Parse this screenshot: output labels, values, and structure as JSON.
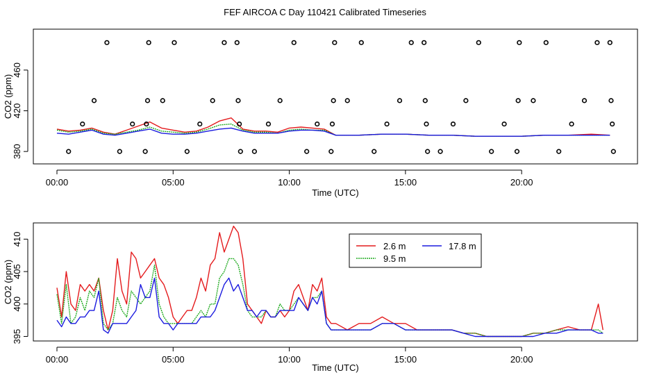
{
  "title": "FEF AIRCOA C  Day 110421  Calibrated Timeseries",
  "chart_data": [
    {
      "type": "line",
      "panel": "top",
      "xlabel": "Time (UTC)",
      "ylabel": "CO2 (ppm)",
      "xlim": [
        0,
        24
      ],
      "ylim": [
        376,
        492
      ],
      "xticks": [
        0,
        5,
        10,
        15,
        20
      ],
      "xtick_labels": [
        "00:00",
        "05:00",
        "10:00",
        "15:00",
        "20:00"
      ],
      "yticks": [
        380,
        420,
        460
      ],
      "ytick_labels": [
        "380",
        "420",
        "460"
      ],
      "series": [
        {
          "name": "2.6 m",
          "color": "#e41a1c",
          "x": [
            0,
            0.5,
            1,
            1.5,
            2,
            2.5,
            3,
            3.5,
            4,
            4.5,
            5,
            5.5,
            6,
            6.5,
            7,
            7.5,
            8,
            8.5,
            9,
            9.5,
            10,
            10.5,
            11,
            11.5,
            12,
            13,
            14,
            15,
            16,
            17,
            18,
            19,
            20,
            21,
            22,
            23,
            23.8
          ],
          "y": [
            402,
            400,
            401,
            403,
            399,
            397,
            401,
            405,
            409,
            403,
            401,
            399,
            400,
            404,
            410,
            413,
            402,
            400,
            400,
            399,
            403,
            404,
            403,
            402,
            396,
            396,
            397,
            397,
            396,
            396,
            395,
            395,
            395,
            396,
            396,
            397,
            396
          ]
        },
        {
          "name": "9.5 m",
          "color": "#1faa1f",
          "x": [
            0,
            0.5,
            1,
            1.5,
            2,
            2.5,
            3,
            3.5,
            4,
            4.5,
            5,
            5.5,
            6,
            6.5,
            7,
            7.5,
            8,
            8.5,
            9,
            9.5,
            10,
            10.5,
            11,
            11.5,
            12,
            13,
            14,
            15,
            16,
            17,
            18,
            19,
            20,
            21,
            22,
            23,
            23.8
          ],
          "y": [
            401,
            399,
            400,
            402,
            398,
            397,
            399,
            401,
            404,
            400,
            399,
            398,
            399,
            402,
            406,
            407,
            401,
            399,
            399,
            398,
            401,
            402,
            401,
            401,
            396,
            396,
            397,
            397,
            396,
            396,
            395,
            395,
            395,
            396,
            396,
            396,
            396
          ]
        },
        {
          "name": "17.8 m",
          "color": "#1a1adf",
          "x": [
            0,
            0.5,
            1,
            1.5,
            2,
            2.5,
            3,
            3.5,
            4,
            4.5,
            5,
            5.5,
            6,
            6.5,
            7,
            7.5,
            8,
            8.5,
            9,
            9.5,
            10,
            10.5,
            11,
            11.5,
            12,
            13,
            14,
            15,
            16,
            17,
            18,
            19,
            20,
            21,
            22,
            23,
            23.8
          ],
          "y": [
            398,
            397,
            399,
            401,
            397,
            396,
            398,
            400,
            402,
            398,
            397,
            397,
            398,
            400,
            402,
            403,
            400,
            398,
            398,
            398,
            400,
            401,
            401,
            400,
            396,
            396,
            397,
            397,
            396,
            396,
            395,
            395,
            395,
            396,
            396,
            396,
            396
          ]
        }
      ],
      "markers": {
        "type": "circle",
        "x": [
          0.5,
          1.1,
          1.6,
          2.15,
          2.7,
          3.25,
          3.8,
          3.85,
          3.9,
          3.95,
          4.55,
          5.05,
          5.6,
          6.15,
          6.7,
          7.2,
          7.75,
          7.8,
          7.85,
          7.9,
          8.5,
          9.1,
          9.6,
          10.2,
          10.75,
          11.2,
          11.8,
          11.85,
          11.9,
          11.95,
          12.5,
          13.1,
          13.65,
          14.2,
          14.75,
          15.25,
          15.8,
          15.85,
          15.9,
          15.95,
          16.5,
          17.05,
          17.6,
          18.15,
          18.7,
          19.25,
          19.8,
          19.85,
          19.9,
          20.5,
          21.05,
          21.6,
          22.15,
          22.7,
          23.25,
          23.8,
          23.85,
          23.9,
          23.95
        ],
        "y": [
          380,
          407,
          430,
          487,
          380,
          407,
          380,
          407,
          430,
          487,
          430,
          487,
          380,
          407,
          430,
          487,
          487,
          430,
          407,
          380,
          380,
          407,
          430,
          487,
          380,
          407,
          380,
          407,
          430,
          487,
          430,
          487,
          380,
          407,
          430,
          487,
          487,
          430,
          407,
          380,
          380,
          407,
          430,
          487,
          380,
          407,
          380,
          430,
          487,
          430,
          487,
          380,
          407,
          430,
          487,
          487,
          430,
          407,
          380
        ]
      }
    },
    {
      "type": "line",
      "panel": "bottom",
      "xlabel": "Time (UTC)",
      "ylabel": "CO2 (ppm)",
      "xlim": [
        0,
        24
      ],
      "ylim": [
        394.3,
        412.5
      ],
      "xticks": [
        0,
        5,
        10,
        15,
        20
      ],
      "xtick_labels": [
        "00:00",
        "05:00",
        "10:00",
        "15:00",
        "20:00"
      ],
      "yticks": [
        395,
        400,
        405,
        410
      ],
      "ytick_labels": [
        "395",
        "400",
        "405",
        "410"
      ],
      "legend": {
        "position": "top-center",
        "entries": [
          "2.6 m",
          "9.5 m",
          "17.8 m"
        ]
      },
      "series": [
        {
          "name": "2.6 m",
          "color": "#e41a1c",
          "x": [
            0,
            0.2,
            0.4,
            0.6,
            0.8,
            1.0,
            1.2,
            1.4,
            1.6,
            1.8,
            2.0,
            2.2,
            2.4,
            2.6,
            2.8,
            3.0,
            3.2,
            3.4,
            3.6,
            3.8,
            4.0,
            4.2,
            4.4,
            4.6,
            4.8,
            5.0,
            5.2,
            5.4,
            5.6,
            5.8,
            6.0,
            6.2,
            6.4,
            6.6,
            6.8,
            7.0,
            7.2,
            7.4,
            7.6,
            7.8,
            8.0,
            8.2,
            8.4,
            8.6,
            8.8,
            9.0,
            9.2,
            9.4,
            9.6,
            9.8,
            10.0,
            10.2,
            10.4,
            10.6,
            10.8,
            11.0,
            11.2,
            11.4,
            11.6,
            11.8,
            12.0,
            12.5,
            13.0,
            13.5,
            14.0,
            14.5,
            15.0,
            15.5,
            16.0,
            16.5,
            17.0,
            17.5,
            18.0,
            18.5,
            19.0,
            19.5,
            20.0,
            20.5,
            21.0,
            21.5,
            22.0,
            22.5,
            23.0,
            23.3,
            23.5
          ],
          "y": [
            402.5,
            398,
            405,
            400,
            399,
            403,
            402,
            403,
            402,
            404,
            399,
            396,
            399,
            407,
            402,
            400,
            408,
            407,
            404,
            405,
            406,
            407,
            404,
            403,
            401,
            398,
            397,
            398,
            399,
            399,
            401,
            404,
            402,
            406,
            407,
            411,
            408,
            410,
            412,
            411,
            407,
            400,
            399,
            398,
            397,
            399,
            398,
            398,
            399,
            398,
            399,
            402,
            403,
            401,
            399,
            403,
            402,
            404,
            398,
            397,
            397,
            396,
            397,
            397,
            398,
            397,
            397,
            396,
            396,
            396,
            396,
            395.5,
            395.5,
            395,
            395,
            395,
            395,
            395.5,
            395.5,
            396,
            396.5,
            396,
            396,
            400,
            396
          ]
        },
        {
          "name": "9.5 m",
          "color": "#1faa1f",
          "x": [
            0,
            0.2,
            0.4,
            0.6,
            0.8,
            1.0,
            1.2,
            1.4,
            1.6,
            1.8,
            2.0,
            2.2,
            2.4,
            2.6,
            2.8,
            3.0,
            3.2,
            3.4,
            3.6,
            3.8,
            4.0,
            4.2,
            4.4,
            4.6,
            4.8,
            5.0,
            5.2,
            5.4,
            5.6,
            5.8,
            6.0,
            6.2,
            6.4,
            6.6,
            6.8,
            7.0,
            7.2,
            7.4,
            7.6,
            7.8,
            8.0,
            8.2,
            8.4,
            8.6,
            8.8,
            9.0,
            9.2,
            9.4,
            9.6,
            9.8,
            10.0,
            10.2,
            10.4,
            10.6,
            10.8,
            11.0,
            11.2,
            11.4,
            11.6,
            11.8,
            12.0,
            12.5,
            13.0,
            13.5,
            14.0,
            14.5,
            15.0,
            15.5,
            16.0,
            16.5,
            17.0,
            17.5,
            18.0,
            18.5,
            19.0,
            19.5,
            20.0,
            20.5,
            21.0,
            21.5,
            22.0,
            22.5,
            23.0,
            23.3,
            23.5
          ],
          "y": [
            401.5,
            397,
            403,
            397,
            398,
            401,
            399,
            402,
            401,
            404,
            397,
            396,
            397,
            401,
            399,
            398,
            402,
            401,
            400,
            401,
            402,
            406,
            400,
            398,
            397,
            397,
            397,
            397,
            397,
            397,
            398,
            399,
            398,
            400,
            400,
            404,
            405,
            407,
            407,
            406,
            403,
            399,
            398,
            398,
            398,
            399,
            398,
            398,
            400,
            399,
            399,
            400,
            401,
            400,
            399,
            401,
            401,
            402,
            397,
            396,
            396,
            396,
            396,
            396,
            397,
            397,
            396,
            396,
            396,
            396,
            396,
            395.5,
            395.5,
            395,
            395,
            395,
            395,
            395.5,
            395.5,
            396,
            396,
            396,
            396,
            396,
            395.5
          ]
        },
        {
          "name": "17.8 m",
          "color": "#1a1adf",
          "x": [
            0,
            0.2,
            0.4,
            0.6,
            0.8,
            1.0,
            1.2,
            1.4,
            1.6,
            1.8,
            2.0,
            2.2,
            2.4,
            2.6,
            2.8,
            3.0,
            3.2,
            3.4,
            3.6,
            3.8,
            4.0,
            4.2,
            4.4,
            4.6,
            4.8,
            5.0,
            5.2,
            5.4,
            5.6,
            5.8,
            6.0,
            6.2,
            6.4,
            6.6,
            6.8,
            7.0,
            7.2,
            7.4,
            7.6,
            7.8,
            8.0,
            8.2,
            8.4,
            8.6,
            8.8,
            9.0,
            9.2,
            9.4,
            9.6,
            9.8,
            10.0,
            10.2,
            10.4,
            10.6,
            10.8,
            11.0,
            11.2,
            11.4,
            11.6,
            11.8,
            12.0,
            12.5,
            13.0,
            13.5,
            14.0,
            14.5,
            15.0,
            15.5,
            16.0,
            16.5,
            17.0,
            17.5,
            18.0,
            18.5,
            19.0,
            19.5,
            20.0,
            20.5,
            21.0,
            21.5,
            22.0,
            22.5,
            23.0,
            23.3,
            23.5
          ],
          "y": [
            397.5,
            396.5,
            398,
            397,
            397,
            398,
            398,
            399,
            399,
            402,
            396,
            395.5,
            397,
            397,
            397,
            397,
            398,
            399,
            403,
            401,
            401,
            404,
            398,
            397,
            397,
            396,
            397,
            397,
            397,
            397,
            397,
            398,
            398,
            398,
            399,
            401,
            403,
            404,
            402,
            403,
            401,
            399,
            399,
            398,
            399,
            399,
            398,
            398,
            399,
            399,
            399,
            399,
            401,
            400,
            399,
            401,
            400,
            402,
            397,
            396,
            396,
            396,
            396,
            396,
            397,
            397,
            396,
            396,
            396,
            396,
            396,
            395.5,
            395,
            395,
            395,
            395,
            395,
            395,
            395.5,
            395.5,
            396,
            396,
            396,
            395.5,
            395.5
          ]
        }
      ]
    }
  ]
}
